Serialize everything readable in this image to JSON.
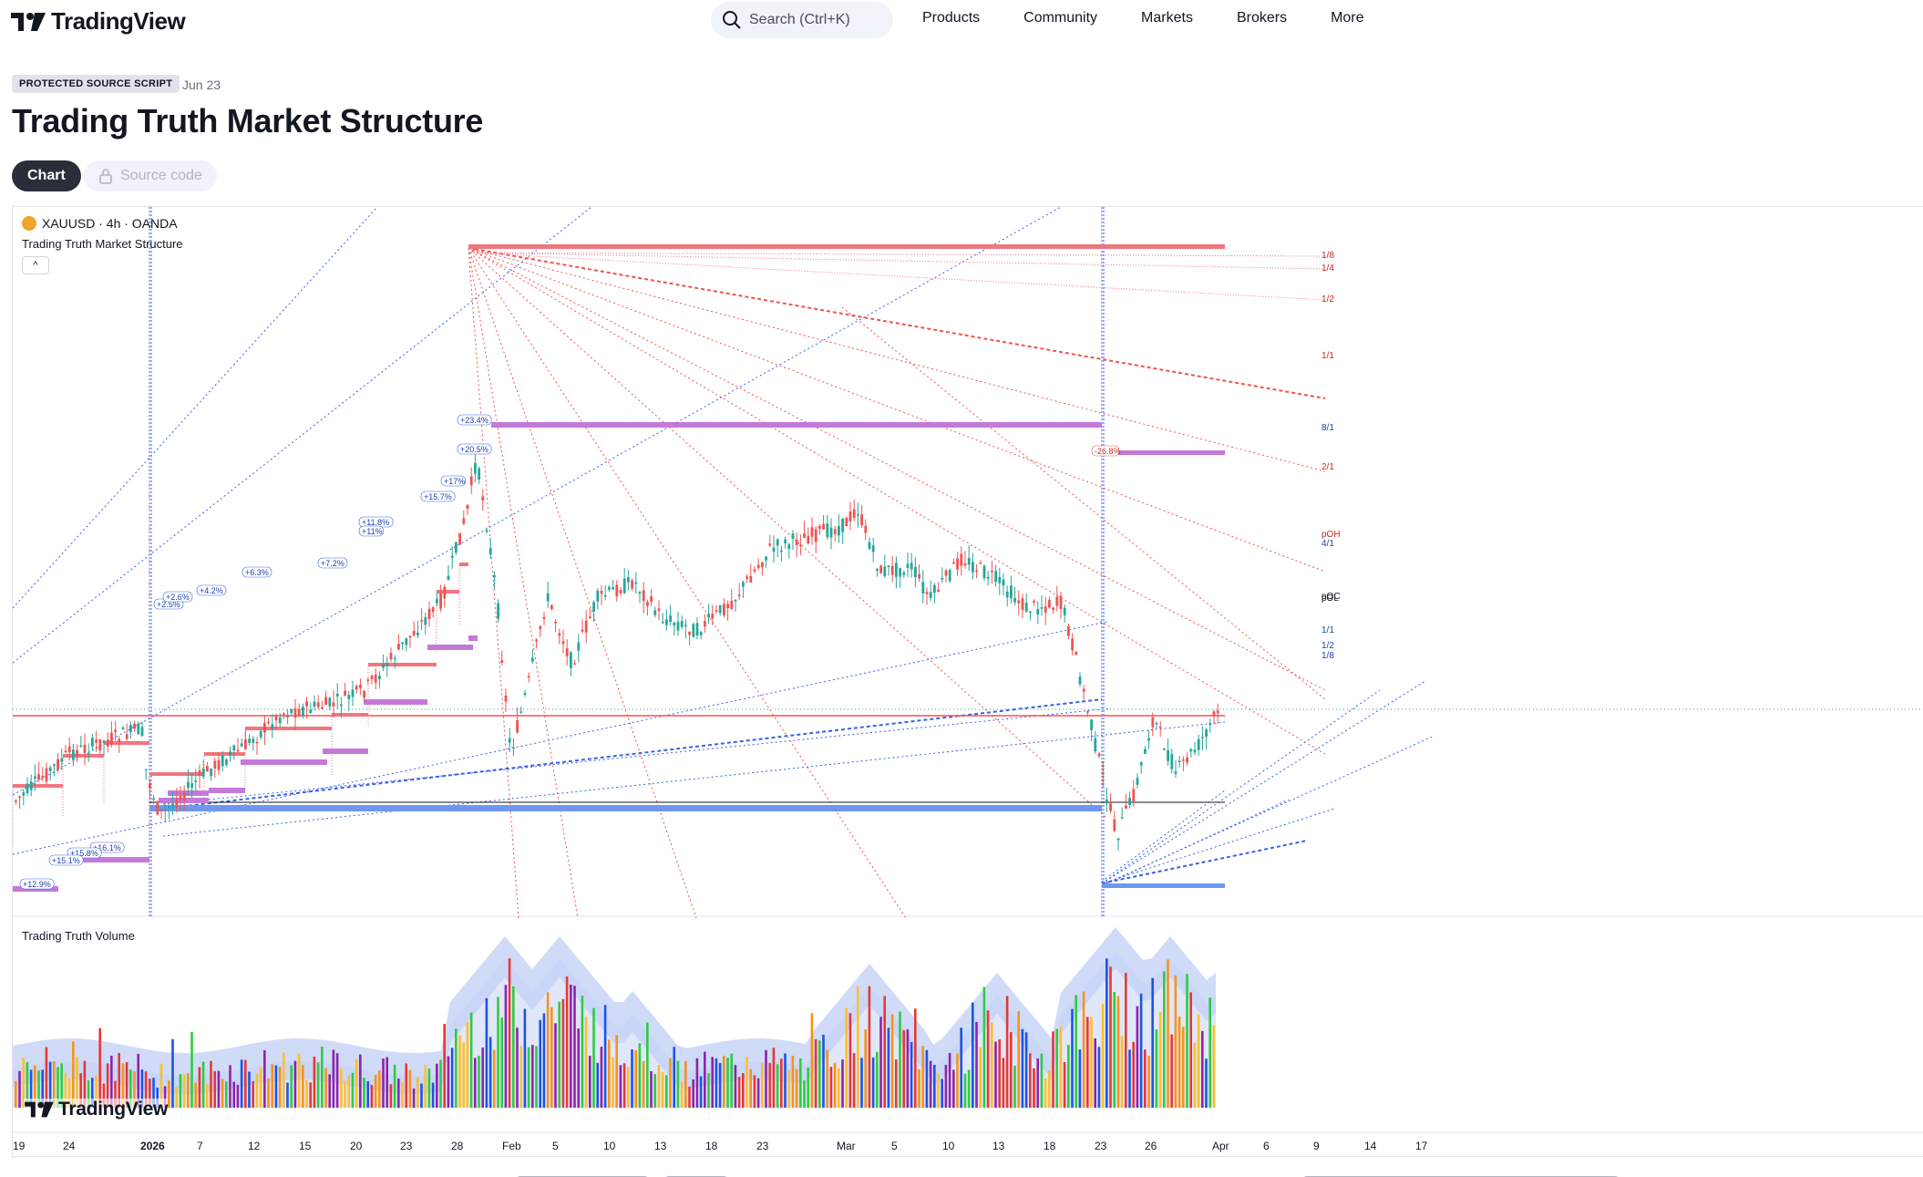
{
  "app": {
    "brand": "TradingView",
    "search_placeholder": "Search (Ctrl+K)",
    "nav": [
      "Products",
      "Community",
      "Markets",
      "Brokers",
      "More"
    ]
  },
  "script": {
    "badge": "PROTECTED SOURCE SCRIPT",
    "date": "Jun 23",
    "title": "Trading Truth Market Structure",
    "tabs": {
      "chart": "Chart",
      "source": "Source code"
    }
  },
  "chart": {
    "symbol": "XAUUSD · 4h · OANDA",
    "indicator": "Trading Truth Market Structure",
    "collapse_glyph": "^",
    "volume_indicator": "Trading Truth Volume",
    "watermark": "TradingView",
    "x_ticks": [
      "19",
      "24",
      "2026",
      "7",
      "12",
      "15",
      "20",
      "23",
      "28",
      "Feb",
      "5",
      "10",
      "13",
      "18",
      "23",
      "Mar",
      "5",
      "10",
      "13",
      "18",
      "23",
      "26",
      "Apr",
      "6",
      "9",
      "14",
      "17"
    ],
    "bold_ticks": [
      "2026"
    ],
    "pct_labels_left": [
      "+23.4%",
      "+20.5%",
      "+17%",
      "+15.7%",
      "+11.8%",
      "+11%",
      "+7.2%",
      "+6.3%",
      "+4.2%",
      "+2.5%",
      "+2.6%",
      "+16.1%",
      "+15.8%",
      "+15.1%",
      "+12.9%"
    ],
    "pct_label_right": "-26.8%",
    "fib_red": [
      "1/8",
      "1/4",
      "1/2",
      "1/1",
      "2/1"
    ],
    "fib_blue": [
      "8/1",
      "4/1",
      "1/1",
      "1/2",
      "1/8"
    ],
    "poc_labels": [
      "pOH",
      "pOC",
      "pOL"
    ],
    "colors": {
      "up": "#26a69a",
      "down": "#ef5350",
      "resistance": "#f0767f",
      "support": "#6f97f0",
      "purple": "#c479d8",
      "dotted_blue": "#3a62e6",
      "vol_band": "#a9bdf2"
    }
  }
}
